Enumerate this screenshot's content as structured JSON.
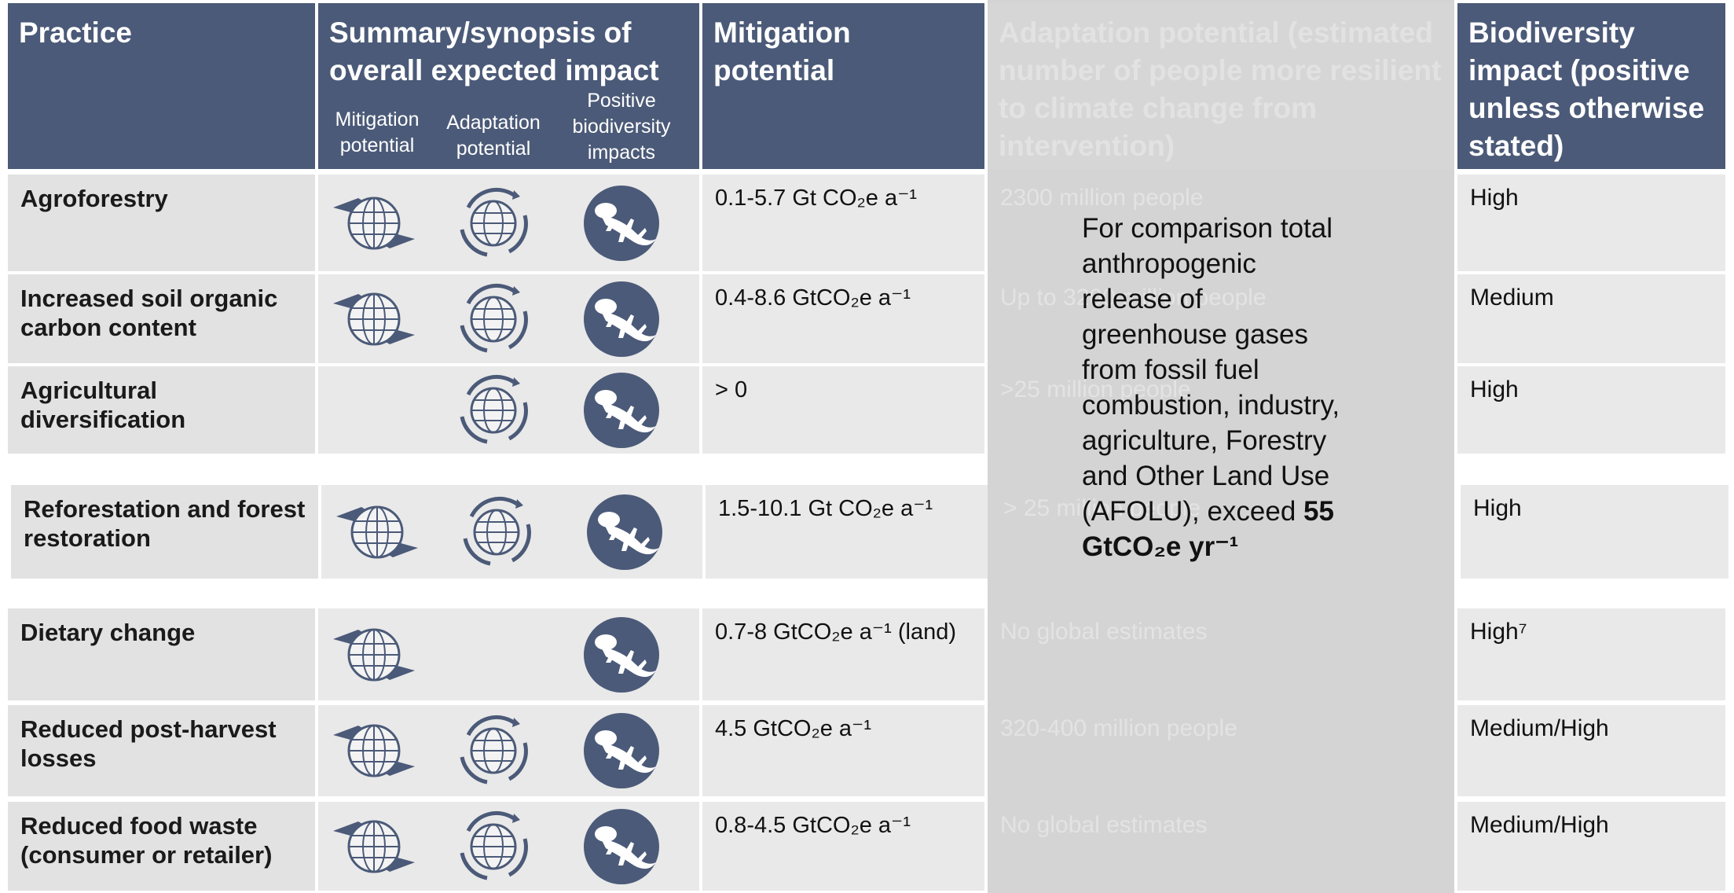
{
  "header": {
    "practice": "Practice",
    "summary": "Summary/synopsis of overall expected impact",
    "summary_sub": [
      "Mitigation potential",
      "Adaptation potential",
      "Positive biodiversity impacts"
    ],
    "mitigation": "Mitigation potential",
    "adaptation": "Adaptation potential (estimated number of people more resilient to climate change from intervention)",
    "biodiversity": "Biodiversity impact (positive unless otherwise stated)"
  },
  "rows": [
    {
      "practice": "Agroforestry",
      "mitigation": "0.1-5.7 Gt CO₂e a⁻¹",
      "adaptation": "2300 million people",
      "biodiversity": "High"
    },
    {
      "practice": "Increased soil organic carbon content",
      "mitigation": "0.4-8.6 GtCO₂e a⁻¹",
      "adaptation": "Up to 3200 million people",
      "biodiversity": "Medium"
    },
    {
      "practice": "Agricultural diversification",
      "mitigation": "> 0",
      "adaptation": ">25 million people",
      "biodiversity": "High"
    },
    {
      "practice": "Reforestation and forest restoration",
      "mitigation": "1.5-10.1 Gt CO₂e a⁻¹",
      "adaptation": "> 25 million people",
      "biodiversity": "High"
    },
    {
      "practice": "Dietary change",
      "mitigation": "0.7-8 GtCO₂e a⁻¹ (land)",
      "adaptation": "No global estimates",
      "biodiversity": "High⁷"
    },
    {
      "practice": "Reduced post-harvest losses",
      "mitigation": "4.5 GtCO₂e a⁻¹",
      "adaptation": "320-400 million people",
      "biodiversity": "Medium/High"
    },
    {
      "practice": "Reduced food waste (consumer or retailer)",
      "mitigation": "0.8-4.5 GtCO₂e a⁻¹",
      "adaptation": "No global estimates",
      "biodiversity": "Medium/High"
    }
  ],
  "note": {
    "text": "For comparison total anthropogenic release of greenhouse gases from fossil fuel combustion, industry, agriculture, Forestry and Other Land Use (AFOLU), exceed",
    "emphasis": "55 GtCO₂e yr⁻¹"
  }
}
